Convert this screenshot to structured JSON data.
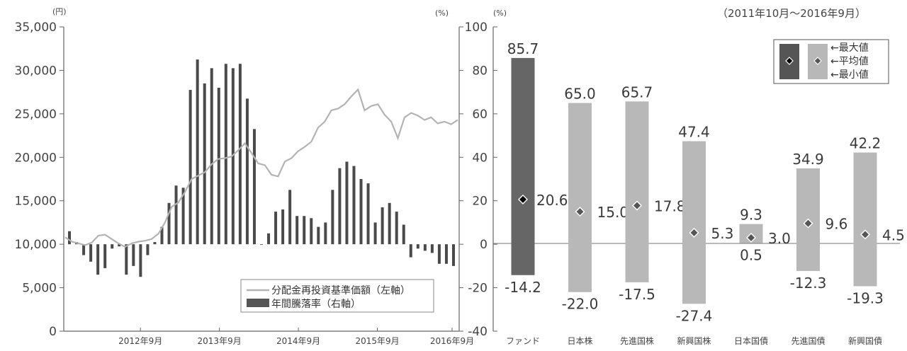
{
  "period_label": "（2011年10月～2016年9月）",
  "left_chart": {
    "left_unit": "(円)",
    "right_unit": "(%)",
    "left_ticks": [
      "35,000",
      "30,000",
      "25,000",
      "20,000",
      "15,000",
      "10,000",
      "5,000",
      "0"
    ],
    "right_ticks": [
      "100",
      "80",
      "60",
      "40",
      "20",
      "0",
      "-20",
      "-40"
    ],
    "x_ticks": [
      "2012年9月",
      "2013年9月",
      "2014年9月",
      "2015年9月",
      "2016年9月"
    ],
    "legend": {
      "line_label": "分配金再投資基準価額（左軸）",
      "bar_label": "年間騰落率（右軸）"
    }
  },
  "right_chart": {
    "unit": "(%)",
    "legend": {
      "max_label": "←最大値",
      "avg_label": "←平均値",
      "min_label": "←最小値"
    }
  },
  "chart_data": [
    {
      "type": "line+bar",
      "series": [
        {
          "name": "分配金再投資基準価額（左軸）",
          "type": "line",
          "axis": "left",
          "x_start": "2011-10",
          "x_end": "2016-09",
          "values": [
            10800,
            10300,
            10100,
            9900,
            10200,
            11000,
            11100,
            10600,
            10100,
            9700,
            10100,
            10300,
            10400,
            10600,
            11200,
            12500,
            14300,
            14800,
            16000,
            17500,
            17900,
            18300,
            19200,
            19800,
            19900,
            20100,
            20800,
            21600,
            20500,
            19300,
            19100,
            18000,
            17800,
            19500,
            19900,
            20700,
            21200,
            21800,
            23400,
            24100,
            25400,
            25600,
            26100,
            27000,
            27800,
            25400,
            25900,
            26100,
            24900,
            24100,
            22200,
            24600,
            25100,
            24800,
            24300,
            24600,
            23900,
            24100,
            23800,
            24300
          ]
        },
        {
          "name": "年間騰落率（右軸）",
          "type": "bar",
          "axis": "right",
          "x_start": "2012-09",
          "x_end": "2016-09",
          "values": [
            6,
            1,
            -5,
            -8,
            -14,
            -11,
            -2,
            -1,
            -14,
            -10,
            -15,
            -5,
            1,
            8,
            19,
            27,
            26,
            71,
            85,
            74,
            81,
            72,
            83,
            81,
            83,
            67,
            53,
            0,
            5,
            15,
            16,
            25,
            13,
            13,
            12,
            8,
            10,
            25,
            35,
            38,
            36,
            30,
            28,
            10,
            17,
            19,
            15,
            9,
            -6,
            -2,
            -3,
            -4,
            -9,
            -9,
            -10
          ]
        }
      ],
      "left_axis": {
        "unit": "円",
        "ylim": [
          0,
          35000
        ]
      },
      "right_axis": {
        "unit": "%",
        "ylim": [
          -40,
          100
        ]
      },
      "x_ticks": [
        "2012年9月",
        "2013年9月",
        "2014年9月",
        "2015年9月",
        "2016年9月"
      ]
    },
    {
      "type": "bar",
      "categories": [
        "ファンド",
        "日本株",
        "先進国株",
        "新興国株",
        "日本国債",
        "先進国債",
        "新興国債"
      ],
      "max": [
        85.7,
        65.0,
        65.7,
        47.4,
        9.3,
        34.9,
        42.2
      ],
      "avg": [
        20.6,
        15.0,
        17.8,
        5.3,
        3.0,
        9.6,
        4.5
      ],
      "min": [
        -14.2,
        -22.0,
        -17.5,
        -27.4,
        0.5,
        -12.3,
        -19.3
      ],
      "ylim": [
        -40,
        100
      ],
      "unit": "%"
    }
  ]
}
